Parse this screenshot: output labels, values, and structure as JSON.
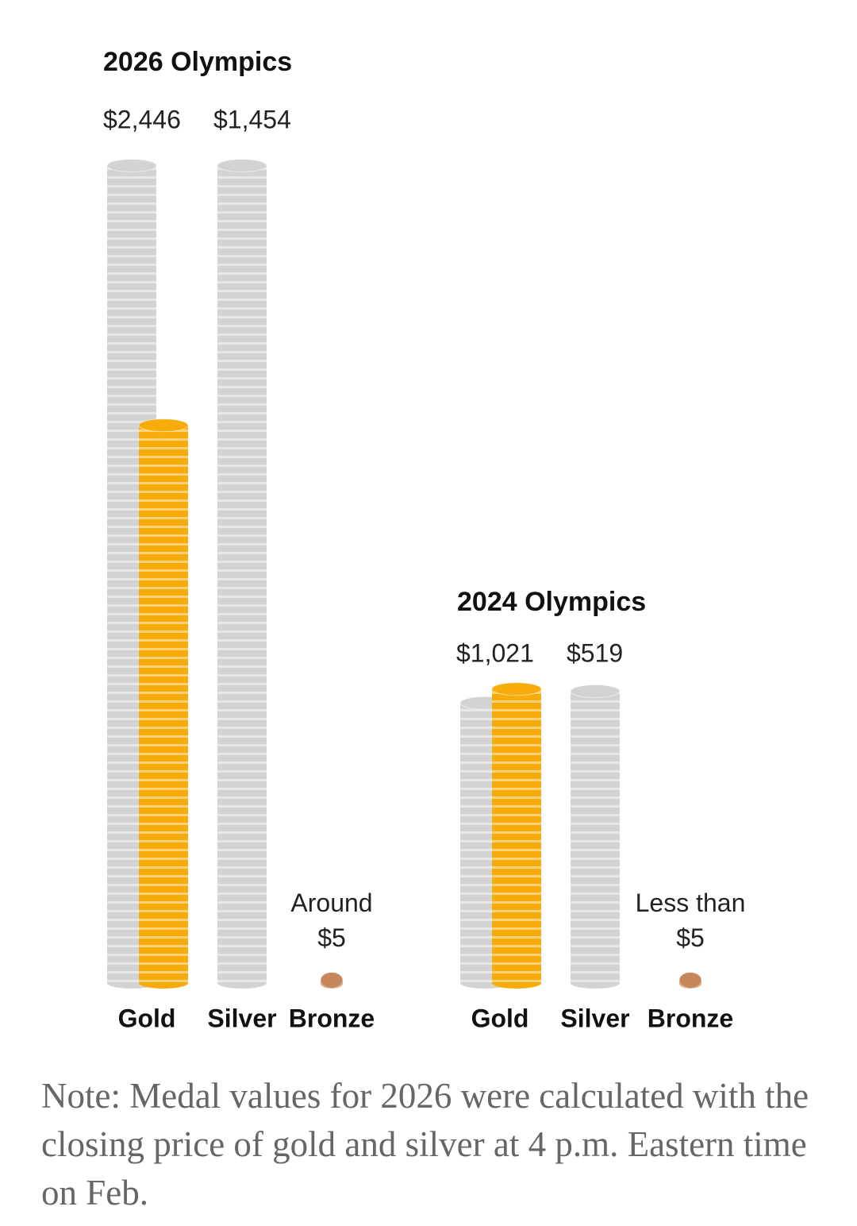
{
  "chart_data": [
    {
      "type": "coin-stack",
      "title": "2026 Olympics",
      "categories": [
        "Gold",
        "Silver",
        "Bronze"
      ],
      "values": [
        2446,
        1454,
        5
      ],
      "value_labels": [
        "$2,446",
        "$1,454",
        "Around $5"
      ],
      "series": [
        {
          "color": "#d3d3d3",
          "values": [
            1454,
            1454,
            null
          ]
        },
        {
          "color": "#f8ac0c",
          "values": [
            992,
            null,
            null
          ]
        },
        {
          "color": "#c6875a",
          "values": [
            null,
            null,
            5
          ]
        }
      ]
    },
    {
      "type": "coin-stack",
      "title": "2024 Olympics",
      "categories": [
        "Gold",
        "Silver",
        "Bronze"
      ],
      "values": [
        1021,
        519,
        5
      ],
      "value_labels": [
        "$1,021",
        "$519",
        "Less than $5"
      ],
      "series": [
        {
          "color": "#d3d3d3",
          "values": [
            498,
            519,
            null
          ]
        },
        {
          "color": "#f8ac0c",
          "values": [
            523,
            null,
            null
          ]
        },
        {
          "color": "#c6875a",
          "values": [
            null,
            null,
            5
          ]
        }
      ]
    }
  ],
  "note": "Note: Medal values for 2026 were calculated with the closing price of gold and silver at 4 p.m. Eastern time on Feb."
}
